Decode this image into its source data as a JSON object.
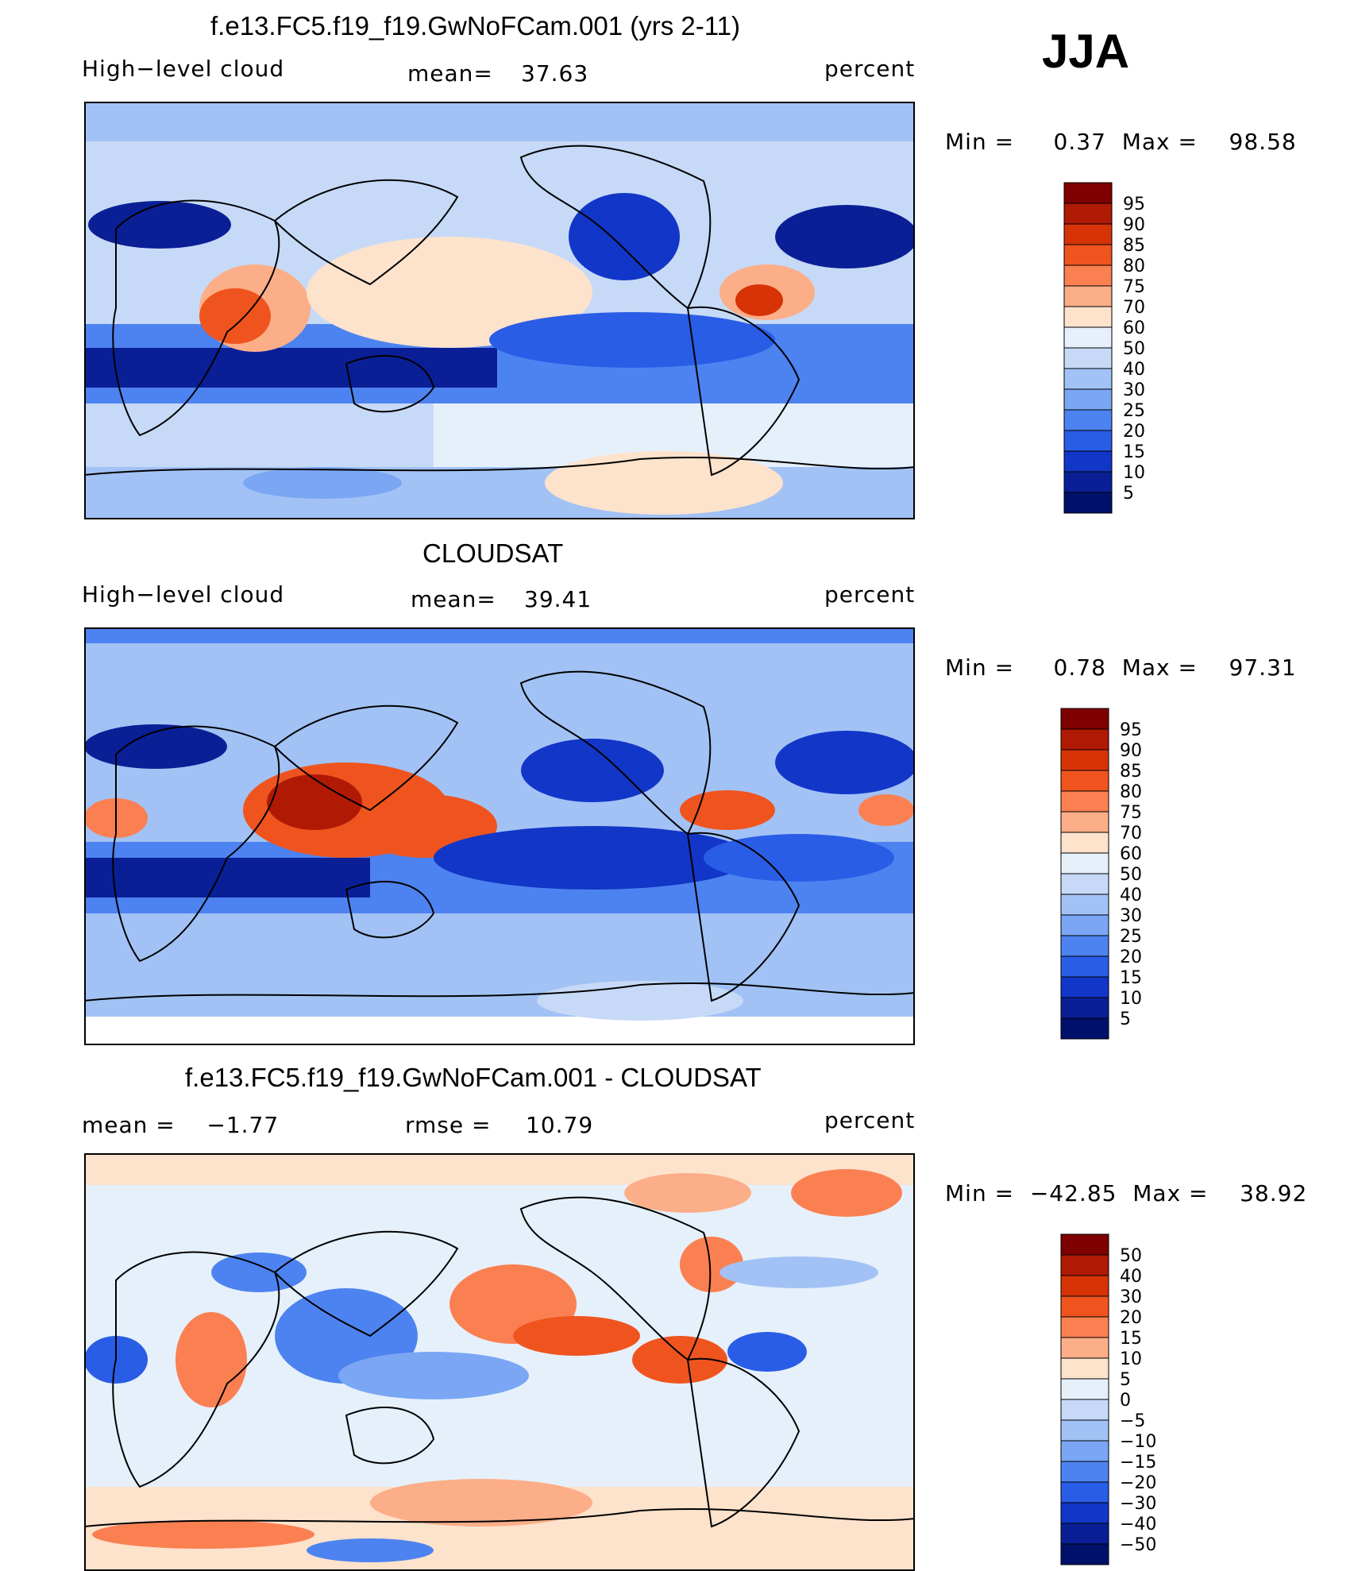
{
  "season": "JJA",
  "panels": [
    {
      "title": "f.e13.FC5.f19_f19.GwNoFCam.001 (yrs 2-11)",
      "left_label": "High−level cloud",
      "stat_label": "mean=",
      "stat_value": "37.63",
      "units": "percent",
      "minmax": "Min =     0.37  Max =    98.58",
      "levels": [
        "95",
        "90",
        "85",
        "80",
        "75",
        "70",
        "60",
        "50",
        "40",
        "30",
        "25",
        "20",
        "15",
        "10",
        "5"
      ]
    },
    {
      "title": "CLOUDSAT",
      "left_label": "High−level cloud",
      "stat_label": "mean=",
      "stat_value": "39.41",
      "units": "percent",
      "minmax": "Min =     0.78  Max =    97.31",
      "levels": [
        "95",
        "90",
        "85",
        "80",
        "75",
        "70",
        "60",
        "50",
        "40",
        "30",
        "25",
        "20",
        "15",
        "10",
        "5"
      ]
    },
    {
      "title": "f.e13.FC5.f19_f19.GwNoFCam.001 - CLOUDSAT",
      "left_label": "mean =    −1.77",
      "stat_label": "rmse =",
      "stat_value": "10.79",
      "units": "percent",
      "minmax": "Min =  −42.85  Max =    38.92",
      "levels": [
        "50",
        "40",
        "30",
        "20",
        "15",
        "10",
        "5",
        "0",
        "−5",
        "−10",
        "−15",
        "−20",
        "−30",
        "−40",
        "−50"
      ]
    }
  ],
  "palette": [
    "#7f0000",
    "#b01a05",
    "#d73307",
    "#f0541e",
    "#fa8052",
    "#fcae88",
    "#fde2cc",
    "#e6f0fb",
    "#c6daf7",
    "#a2c2f5",
    "#7aa6f4",
    "#4d83f0",
    "#2a5de6",
    "#1236c7",
    "#0a1f96",
    "#00116b"
  ]
}
